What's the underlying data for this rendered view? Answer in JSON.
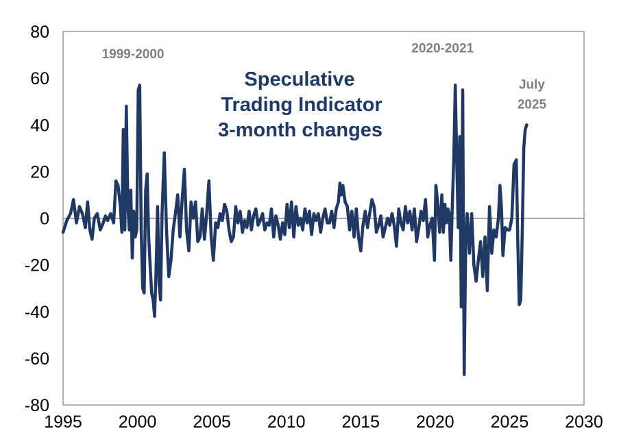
{
  "chart_data": {
    "type": "line",
    "title_lines": [
      "Speculative",
      "Trading Indicator",
      "3-month changes"
    ],
    "xlabel": "",
    "ylabel": "",
    "xlim": [
      1995,
      2030
    ],
    "ylim": [
      -80,
      80
    ],
    "x_ticks": [
      "1995",
      "2000",
      "2005",
      "2010",
      "2015",
      "2020",
      "2025",
      "2030"
    ],
    "y_ticks": [
      "80",
      "60",
      "40",
      "20",
      "0",
      "-20",
      "-40",
      "-60",
      "-80"
    ],
    "grid": false,
    "zero_line": true,
    "colors": {
      "series": "#1f3864",
      "title": "#1f3864",
      "annotation": "#7f7f7f",
      "axis": "#808080"
    },
    "annotations": [
      {
        "text": "1999-2000",
        "x": 1999.7,
        "y": 68.5
      },
      {
        "text": "2020-2021",
        "x": 2020.5,
        "y": 71
      },
      {
        "text": "July",
        "x": 2026.5,
        "y": 55.5
      },
      {
        "text": "2025",
        "x": 2026.5,
        "y": 47
      }
    ],
    "series": [
      {
        "points": [
          [
            1995.0,
            -6
          ],
          [
            1995.25,
            -1
          ],
          [
            1995.5,
            2
          ],
          [
            1995.7,
            8
          ],
          [
            1995.9,
            -2
          ],
          [
            1996.1,
            5
          ],
          [
            1996.3,
            2
          ],
          [
            1996.5,
            -4
          ],
          [
            1996.65,
            7
          ],
          [
            1996.8,
            -5
          ],
          [
            1996.95,
            -9
          ],
          [
            1997.1,
            0
          ],
          [
            1997.3,
            2
          ],
          [
            1997.5,
            -5
          ],
          [
            1997.7,
            -2
          ],
          [
            1997.85,
            1
          ],
          [
            1998.0,
            -1
          ],
          [
            1998.2,
            2
          ],
          [
            1998.4,
            -2
          ],
          [
            1998.55,
            16
          ],
          [
            1998.7,
            14
          ],
          [
            1998.85,
            5
          ],
          [
            1998.95,
            -6
          ],
          [
            1999.05,
            38
          ],
          [
            1999.15,
            -5
          ],
          [
            1999.25,
            48
          ],
          [
            1999.35,
            6
          ],
          [
            1999.45,
            -5
          ],
          [
            1999.55,
            12
          ],
          [
            1999.65,
            -17
          ],
          [
            1999.75,
            3
          ],
          [
            1999.85,
            -8
          ],
          [
            1999.95,
            -5
          ],
          [
            2000.05,
            55
          ],
          [
            2000.15,
            57
          ],
          [
            2000.25,
            -5
          ],
          [
            2000.35,
            -30
          ],
          [
            2000.45,
            -32
          ],
          [
            2000.55,
            12
          ],
          [
            2000.65,
            19
          ],
          [
            2000.75,
            -8
          ],
          [
            2000.85,
            -20
          ],
          [
            2000.95,
            -32
          ],
          [
            2001.05,
            -35
          ],
          [
            2001.15,
            -42
          ],
          [
            2001.25,
            -22
          ],
          [
            2001.35,
            5
          ],
          [
            2001.45,
            -28
          ],
          [
            2001.55,
            -35
          ],
          [
            2001.65,
            2
          ],
          [
            2001.8,
            28
          ],
          [
            2001.95,
            -5
          ],
          [
            2002.1,
            -25
          ],
          [
            2002.25,
            -18
          ],
          [
            2002.4,
            -5
          ],
          [
            2002.55,
            2
          ],
          [
            2002.7,
            10
          ],
          [
            2002.85,
            -8
          ],
          [
            2003.0,
            8
          ],
          [
            2003.15,
            21
          ],
          [
            2003.3,
            -5
          ],
          [
            2003.45,
            -14
          ],
          [
            2003.6,
            7
          ],
          [
            2003.75,
            0
          ],
          [
            2003.9,
            7
          ],
          [
            2004.05,
            -10
          ],
          [
            2004.2,
            -8
          ],
          [
            2004.35,
            4
          ],
          [
            2004.5,
            -9
          ],
          [
            2004.65,
            2
          ],
          [
            2004.8,
            16
          ],
          [
            2004.95,
            -8
          ],
          [
            2005.1,
            -18
          ],
          [
            2005.25,
            -2
          ],
          [
            2005.4,
            -4
          ],
          [
            2005.55,
            2
          ],
          [
            2005.7,
            -1
          ],
          [
            2005.85,
            6
          ],
          [
            2006.0,
            3
          ],
          [
            2006.15,
            -5
          ],
          [
            2006.3,
            -10
          ],
          [
            2006.45,
            -8
          ],
          [
            2006.6,
            5
          ],
          [
            2006.75,
            -2
          ],
          [
            2006.9,
            3
          ],
          [
            2007.05,
            -6
          ],
          [
            2007.2,
            -1
          ],
          [
            2007.35,
            -4
          ],
          [
            2007.5,
            3
          ],
          [
            2007.65,
            -5
          ],
          [
            2007.8,
            1
          ],
          [
            2007.95,
            4
          ],
          [
            2008.1,
            -3
          ],
          [
            2008.25,
            -1
          ],
          [
            2008.4,
            2
          ],
          [
            2008.55,
            -5
          ],
          [
            2008.7,
            -2
          ],
          [
            2008.85,
            -3
          ],
          [
            2009.0,
            4
          ],
          [
            2009.15,
            -8
          ],
          [
            2009.3,
            1
          ],
          [
            2009.45,
            -3
          ],
          [
            2009.6,
            -9
          ],
          [
            2009.75,
            -2
          ],
          [
            2009.9,
            -7
          ],
          [
            2010.05,
            6
          ],
          [
            2010.2,
            -4
          ],
          [
            2010.35,
            7
          ],
          [
            2010.5,
            -8
          ],
          [
            2010.65,
            5
          ],
          [
            2010.8,
            -3
          ],
          [
            2010.95,
            0
          ],
          [
            2011.1,
            -5
          ],
          [
            2011.25,
            4
          ],
          [
            2011.4,
            -2
          ],
          [
            2011.55,
            3
          ],
          [
            2011.7,
            -7
          ],
          [
            2011.85,
            2
          ],
          [
            2012.0,
            -1
          ],
          [
            2012.15,
            2
          ],
          [
            2012.3,
            -6
          ],
          [
            2012.45,
            0
          ],
          [
            2012.6,
            4
          ],
          [
            2012.75,
            -2
          ],
          [
            2012.9,
            -2
          ],
          [
            2013.05,
            3
          ],
          [
            2013.2,
            -4
          ],
          [
            2013.35,
            4
          ],
          [
            2013.5,
            7
          ],
          [
            2013.6,
            15
          ],
          [
            2013.7,
            10
          ],
          [
            2013.8,
            14
          ],
          [
            2013.95,
            7
          ],
          [
            2014.1,
            5
          ],
          [
            2014.25,
            -5
          ],
          [
            2014.4,
            3
          ],
          [
            2014.55,
            -8
          ],
          [
            2014.7,
            4
          ],
          [
            2014.85,
            -8
          ],
          [
            2015.0,
            -14
          ],
          [
            2015.15,
            -3
          ],
          [
            2015.3,
            3
          ],
          [
            2015.45,
            -4
          ],
          [
            2015.6,
            2
          ],
          [
            2015.75,
            8
          ],
          [
            2015.9,
            5
          ],
          [
            2016.05,
            -6
          ],
          [
            2016.2,
            -3
          ],
          [
            2016.35,
            1
          ],
          [
            2016.5,
            -8
          ],
          [
            2016.65,
            -4
          ],
          [
            2016.8,
            0
          ],
          [
            2016.95,
            -3
          ],
          [
            2017.1,
            2
          ],
          [
            2017.25,
            -3
          ],
          [
            2017.4,
            -12
          ],
          [
            2017.55,
            4
          ],
          [
            2017.7,
            -2
          ],
          [
            2017.85,
            -5
          ],
          [
            2018.0,
            5
          ],
          [
            2018.15,
            -2
          ],
          [
            2018.3,
            3
          ],
          [
            2018.45,
            -5
          ],
          [
            2018.6,
            4
          ],
          [
            2018.75,
            -10
          ],
          [
            2018.9,
            -4
          ],
          [
            2019.05,
            3
          ],
          [
            2019.2,
            -1
          ],
          [
            2019.35,
            8
          ],
          [
            2019.5,
            -8
          ],
          [
            2019.65,
            -3
          ],
          [
            2019.8,
            0
          ],
          [
            2019.95,
            -18
          ],
          [
            2020.05,
            14
          ],
          [
            2020.15,
            8
          ],
          [
            2020.3,
            -6
          ],
          [
            2020.45,
            10
          ],
          [
            2020.55,
            -6
          ],
          [
            2020.65,
            6
          ],
          [
            2020.75,
            -2
          ],
          [
            2020.85,
            4
          ],
          [
            2020.95,
            2
          ],
          [
            2021.05,
            -18
          ],
          [
            2021.15,
            5
          ],
          [
            2021.25,
            25
          ],
          [
            2021.35,
            57
          ],
          [
            2021.45,
            25
          ],
          [
            2021.55,
            -4
          ],
          [
            2021.65,
            35
          ],
          [
            2021.75,
            -38
          ],
          [
            2021.85,
            55
          ],
          [
            2021.95,
            -67
          ],
          [
            2022.05,
            -10
          ],
          [
            2022.15,
            2
          ],
          [
            2022.3,
            -15
          ],
          [
            2022.45,
            2
          ],
          [
            2022.6,
            -20
          ],
          [
            2022.75,
            -27
          ],
          [
            2022.9,
            -18
          ],
          [
            2023.05,
            -10
          ],
          [
            2023.2,
            -25
          ],
          [
            2023.35,
            -8
          ],
          [
            2023.5,
            -31
          ],
          [
            2023.65,
            5
          ],
          [
            2023.8,
            -15
          ],
          [
            2023.95,
            -5
          ],
          [
            2024.1,
            -8
          ],
          [
            2024.25,
            0
          ],
          [
            2024.35,
            14
          ],
          [
            2024.45,
            5
          ],
          [
            2024.55,
            -16
          ],
          [
            2024.7,
            -4
          ],
          [
            2024.85,
            -5
          ],
          [
            2025.0,
            -5
          ],
          [
            2025.15,
            0
          ],
          [
            2025.3,
            23
          ],
          [
            2025.45,
            25
          ],
          [
            2025.55,
            -10
          ],
          [
            2025.65,
            -37
          ],
          [
            2025.75,
            -35
          ],
          [
            2025.85,
            -6
          ],
          [
            2025.95,
            30
          ],
          [
            2026.05,
            38
          ],
          [
            2026.15,
            40
          ]
        ]
      }
    ]
  }
}
